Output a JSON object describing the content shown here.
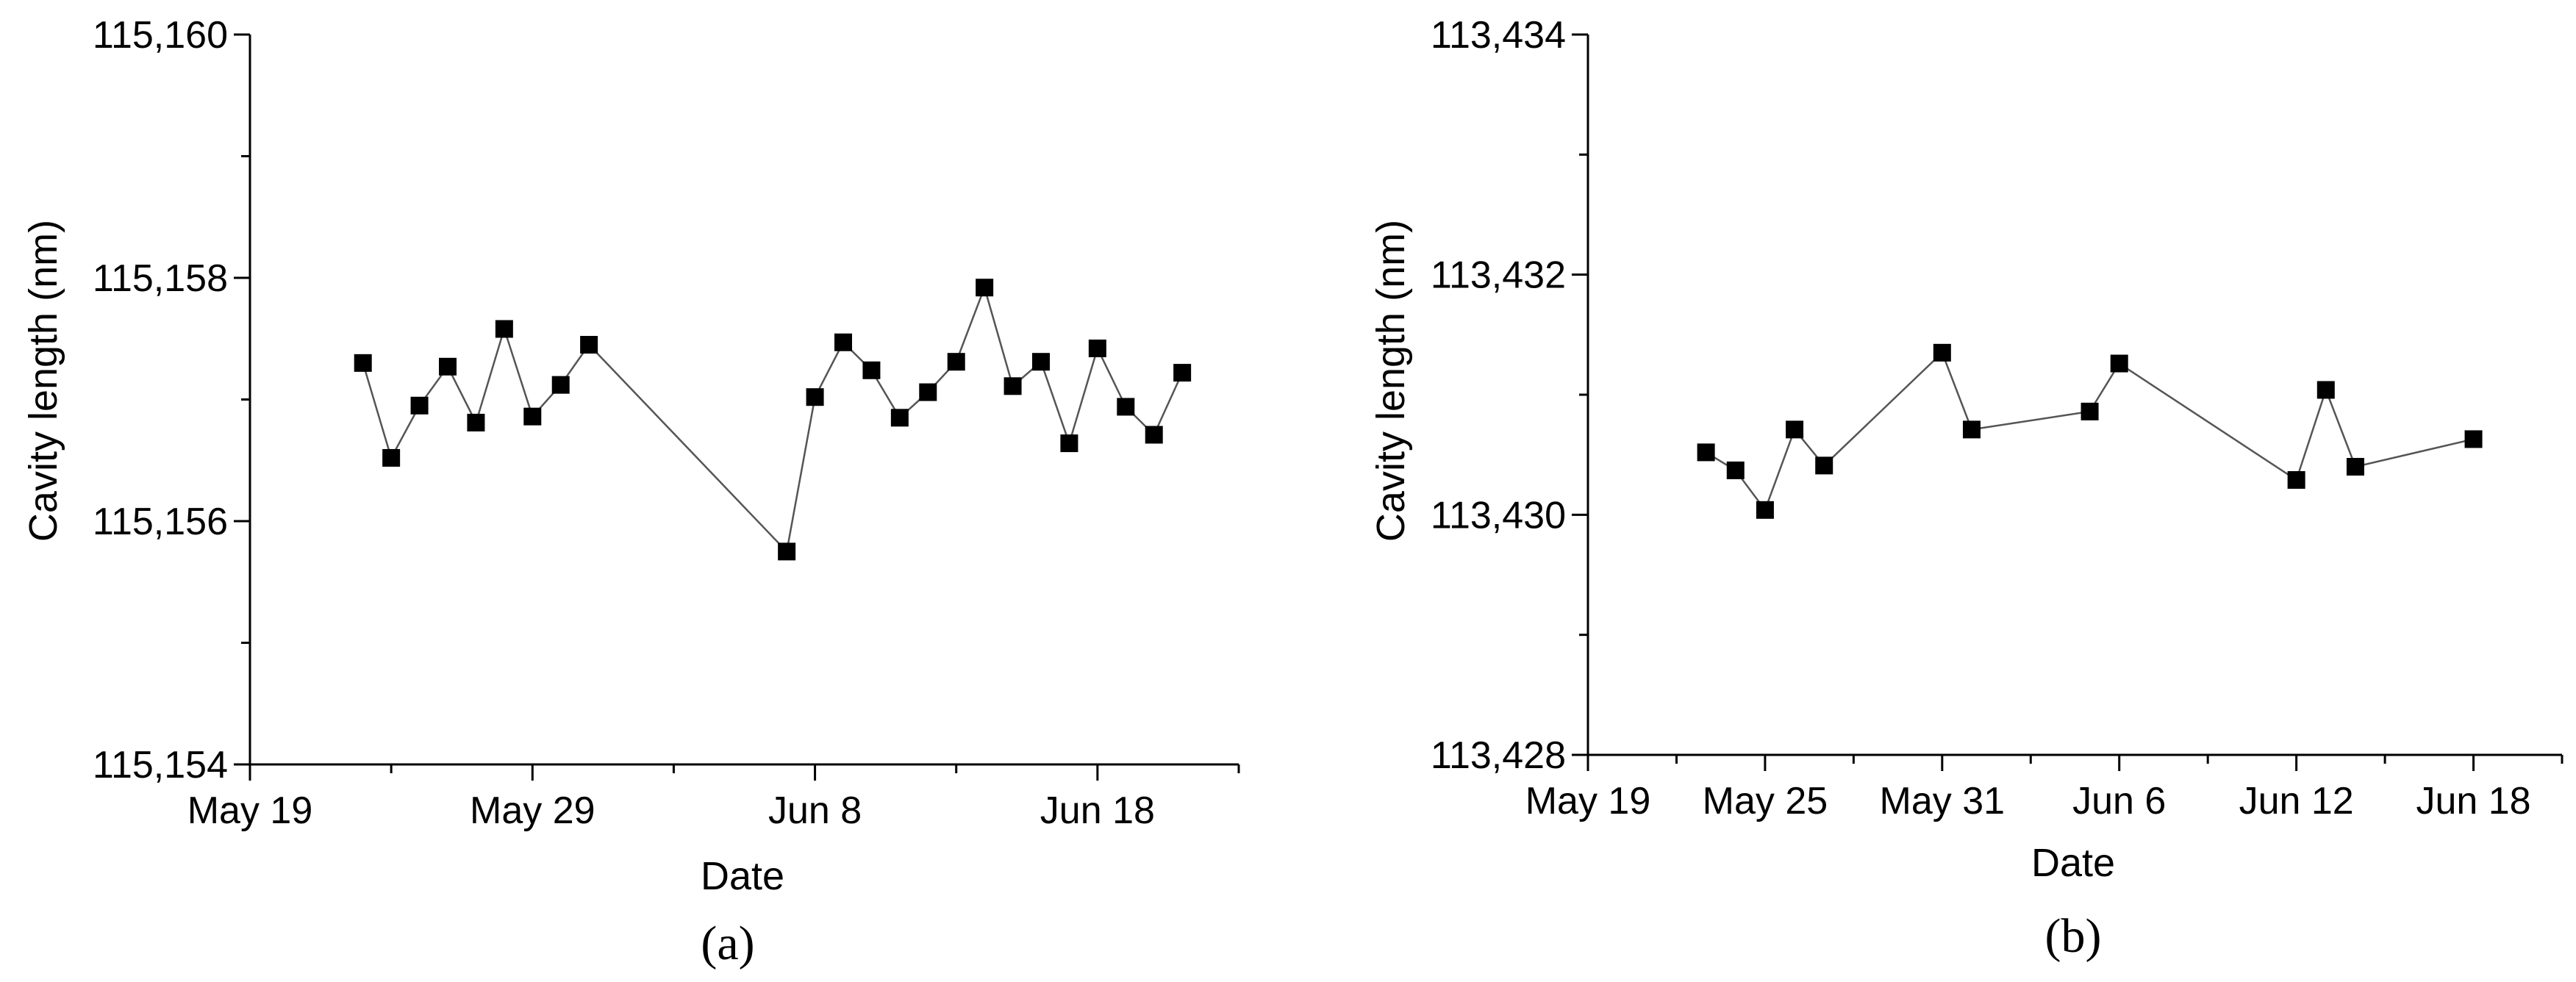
{
  "chart_data": [
    {
      "type": "line",
      "panel_label": "(a)",
      "xlabel": "Date",
      "ylabel": "Cavity length (nm)",
      "x_ticks": [
        "May 19",
        "May 29",
        "Jun 8",
        "Jun 18"
      ],
      "y_ticks": [
        "115,154",
        "115,156",
        "115,158",
        "115,160"
      ],
      "xlim": [
        "2021-05-19",
        "2021-06-23"
      ],
      "ylim": [
        115154,
        115160
      ],
      "grid": false,
      "legend": "none",
      "marker": "square",
      "series": [
        {
          "x": [
            "2021-05-23",
            "2021-05-24",
            "2021-05-25",
            "2021-05-26",
            "2021-05-27",
            "2021-05-28",
            "2021-05-29",
            "2021-05-30",
            "2021-05-31",
            "2021-06-07",
            "2021-06-08",
            "2021-06-09",
            "2021-06-10",
            "2021-06-11",
            "2021-06-12",
            "2021-06-13",
            "2021-06-14",
            "2021-06-15",
            "2021-06-16",
            "2021-06-17",
            "2021-06-18",
            "2021-06-19",
            "2021-06-20",
            "2021-06-21"
          ],
          "y": [
            115157.3,
            115156.52,
            115156.95,
            115157.27,
            115156.81,
            115157.58,
            115156.86,
            115157.12,
            115157.45,
            115155.75,
            115157.02,
            115157.47,
            115157.24,
            115156.85,
            115157.06,
            115157.31,
            115157.92,
            115157.11,
            115157.31,
            115156.64,
            115157.42,
            115156.94,
            115156.71,
            115157.22
          ]
        }
      ]
    },
    {
      "type": "line",
      "panel_label": "(b)",
      "xlabel": "Date",
      "ylabel": "Cavity length (nm)",
      "x_ticks": [
        "May 19",
        "May 25",
        "May 31",
        "Jun 6",
        "Jun 12",
        "Jun 18"
      ],
      "y_ticks": [
        "113,428",
        "113,430",
        "113,432",
        "113,434"
      ],
      "xlim": [
        "2021-05-19",
        "2021-06-21"
      ],
      "ylim": [
        113428,
        113434
      ],
      "grid": false,
      "legend": "none",
      "marker": "square",
      "series": [
        {
          "x": [
            "2021-05-23",
            "2021-05-24",
            "2021-05-25",
            "2021-05-26",
            "2021-05-27",
            "2021-05-31",
            "2021-06-01",
            "2021-06-05",
            "2021-06-06",
            "2021-06-12",
            "2021-06-13",
            "2021-06-14",
            "2021-06-18"
          ],
          "y": [
            113430.52,
            113430.37,
            113430.04,
            113430.71,
            113430.41,
            113431.35,
            113430.71,
            113430.86,
            113431.26,
            113430.29,
            113431.04,
            113430.4,
            113430.63
          ]
        }
      ]
    }
  ]
}
